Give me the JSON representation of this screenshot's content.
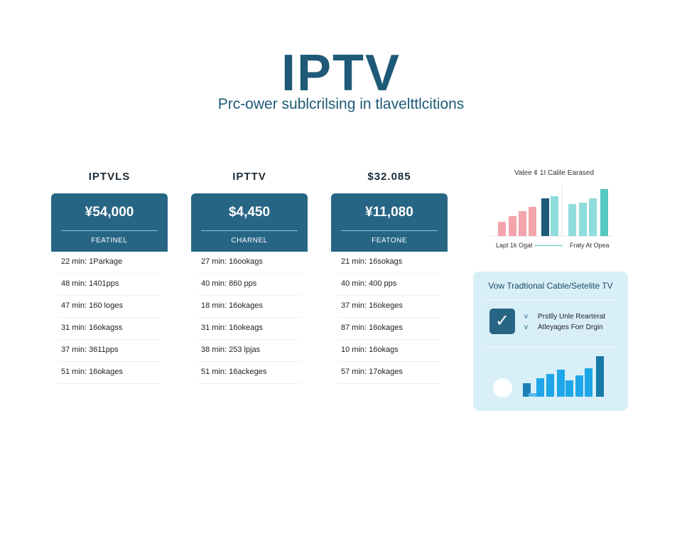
{
  "header": {
    "title": "IPTV",
    "subtitle": "Prc-ower sublcrilsing in tlavelttlcitions"
  },
  "plans": [
    {
      "heading": "IPTVLS",
      "price": "¥54,000",
      "feature": "FEATINEL",
      "rows": [
        "22 min: 1Parkage",
        "48 min: 1401pps",
        "47 min: 160 loges",
        "31 min: 16okagss",
        "37 min: 3611pps",
        "51 min: 16okages"
      ]
    },
    {
      "heading": "IPTTV",
      "price": "$4,450",
      "feature": "CHARNEL",
      "rows": [
        "27 min: 16ookags",
        "40 min: 860 pps",
        "18 min: 16okages",
        "31 min: 16okeags",
        "38 min: 253 lpjas",
        "51 min: 16ackeges"
      ]
    },
    {
      "heading": "$32.085",
      "price": "¥11,080",
      "feature": "FEATONE",
      "rows": [
        "21 min: 16sokags",
        "40 min: 400 pps",
        "37 min: 16okeges",
        "87 min: 16okages",
        "10 min: 16okags",
        "57 min: 17okages"
      ]
    }
  ],
  "comparison_chart": {
    "title": "Valee ¢ 1I Calile Earased",
    "legend_left": "Lapt 1k Ogat",
    "legend_right": "Fraty At Opea",
    "bars": [
      {
        "v": 20,
        "c": "#f4a3ab"
      },
      {
        "v": 28,
        "c": "#f4a3ab"
      },
      {
        "v": 35,
        "c": "#f4a3ab"
      },
      {
        "v": 41,
        "c": "#f4a3ab"
      },
      {
        "v": 53,
        "c": "#1e5a78"
      },
      {
        "v": 56,
        "c": "#8fdcdc"
      },
      {
        "v": 45,
        "c": "#8fdcdc"
      },
      {
        "v": 47,
        "c": "#8fdcdc"
      },
      {
        "v": 53,
        "c": "#8fdcdc"
      },
      {
        "v": 66,
        "c": "#55c8bf"
      }
    ]
  },
  "panel": {
    "title": "Vow Tradtional Cable/Setelite TV",
    "features": [
      {
        "mark": "v",
        "text": "Prstlly Unle Rearterat"
      },
      {
        "mark": "v",
        "text": "Atleyages Forr Drgin"
      }
    ],
    "bars": [
      {
        "v": 19,
        "c": "#1a7fb5"
      },
      {
        "v": 5,
        "c": "#5bb8e8"
      },
      {
        "v": 26,
        "c": "#1fa6e8"
      },
      {
        "v": 32,
        "c": "#1fa6e8"
      },
      {
        "v": 38,
        "c": "#1fa6e8"
      },
      {
        "v": 23,
        "c": "#1fa6e8"
      },
      {
        "v": 30,
        "c": "#1fa6e8"
      },
      {
        "v": 40,
        "c": "#1fa6e8"
      },
      {
        "v": 57,
        "c": "#167aa8"
      }
    ]
  },
  "colors": {
    "accent": "#276585",
    "title": "#1e5a78"
  }
}
